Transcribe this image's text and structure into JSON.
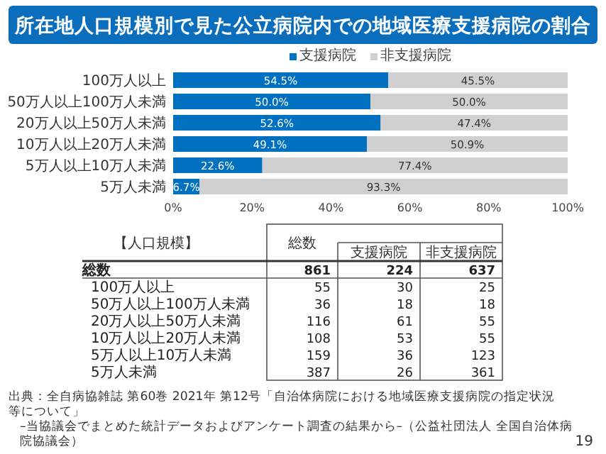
{
  "chart_data": [
    {
      "type": "bar",
      "orientation": "horizontal",
      "stacked": true,
      "title": "所在地人口規模別で見た公立病院内での地域医療支援病院の割合",
      "categories": [
        "100万人以上",
        "50万人以上100万人未満",
        "20万人以上50万人未満",
        "10万人以上20万人未満",
        "5万人以上10万人未満",
        "5万人未満"
      ],
      "series": [
        {
          "name": "支援病院",
          "color": "#0070c0",
          "values": [
            54.5,
            50.0,
            52.6,
            49.1,
            22.6,
            6.7
          ],
          "value_labels": [
            "54.5%",
            "50.0%",
            "52.6%",
            "49.1%",
            "22.6%",
            "6.7%"
          ]
        },
        {
          "name": "非支援病院",
          "color": "#d0d0d0",
          "values": [
            45.5,
            50.0,
            47.4,
            50.9,
            77.4,
            93.3
          ],
          "value_labels": [
            "45.5%",
            "50.0%",
            "47.4%",
            "50.9%",
            "77.4%",
            "93.3%"
          ]
        }
      ],
      "xlim": [
        0,
        100
      ],
      "xticks": [
        {
          "value": 0,
          "label": "0%"
        },
        {
          "value": 20,
          "label": "20%"
        },
        {
          "value": 40,
          "label": "40%"
        },
        {
          "value": 60,
          "label": "60%"
        },
        {
          "value": 80,
          "label": "80%"
        },
        {
          "value": 100,
          "label": "100%"
        }
      ],
      "legend": "top",
      "annotations": [
        "出典：全自病協雑誌 第60巻 2021年 第12号「自治体病院における地域医療支援病院の指定状況等について」",
        "–当協議会でまとめた統計データおよびアンケート調査の結果から–（公益社団法人 全国自治体病院協議会）",
        "19"
      ]
    },
    {
      "type": "other",
      "title": "【人口規模】",
      "categories": [
        "総数",
        "100万人以上",
        "50万人以上100万人未満",
        "20万人以上50万人未満",
        "10万人以上20万人未満",
        "5万人以上10万人未満",
        "5万人未満"
      ],
      "series": [
        {
          "name": "総数",
          "values": [
            861,
            55,
            36,
            116,
            108,
            159,
            387
          ]
        },
        {
          "name": "支援病院",
          "values": [
            224,
            30,
            18,
            61,
            53,
            36,
            26
          ]
        },
        {
          "name": "非支援病院",
          "values": [
            637,
            25,
            18,
            55,
            55,
            123,
            361
          ]
        }
      ],
      "data_labels": true
    }
  ]
}
